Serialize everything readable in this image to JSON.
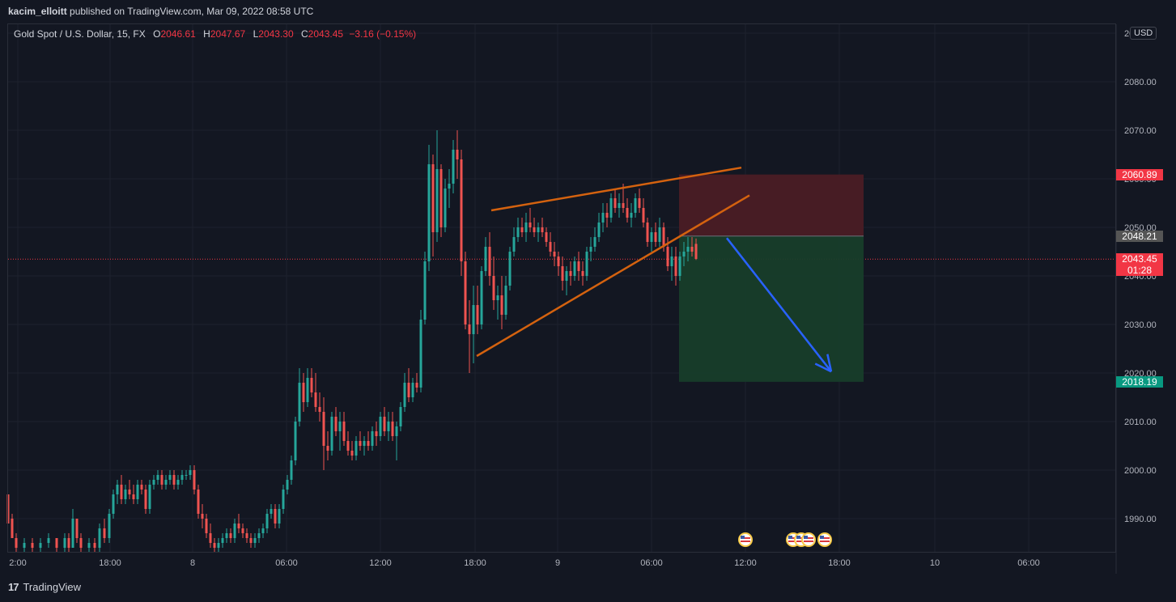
{
  "header": {
    "author": "kacim_elloitt",
    "text": " published on TradingView.com, Mar 09, 2022 08:58 UTC"
  },
  "legend": {
    "symbol": "Gold Spot / U.S. Dollar, 15, FX",
    "o_label": "O",
    "o_value": "2046.61",
    "h_label": "H",
    "h_value": "2047.67",
    "l_label": "L",
    "l_value": "2043.30",
    "c_label": "C",
    "c_value": "2043.45",
    "change": "−3.16 (−0.15%)"
  },
  "currency": "USD",
  "footer": {
    "brand": "TradingView",
    "logo": "17"
  },
  "colors": {
    "background": "#131722",
    "grid": "#1e222d",
    "up": "#26a69a",
    "down": "#ef5350",
    "wedge": "#d4620f",
    "stop_zone": "#4a1c25",
    "target_zone": "#173d2a",
    "arrow": "#2962ff"
  },
  "chart_data": {
    "type": "candlestick",
    "symbol": "Gold Spot / U.S. Dollar",
    "timeframe": "15",
    "ylim": [
      1983,
      2089
    ],
    "y_ticks": [
      1990,
      2000,
      2010,
      2020,
      2030,
      2040,
      2050,
      2060,
      2070,
      2080,
      2090
    ],
    "y_tick_labels": [
      "1990.00",
      "2000.00",
      "2010.00",
      "2020.00",
      "2030.00",
      "2040.00",
      "2050.00",
      "2060.00",
      "2070.00",
      "2080.00",
      "2090.00"
    ],
    "x_tick_labels": [
      "2:00",
      "18:00",
      "8",
      "06:00",
      "12:00",
      "18:00",
      "9",
      "06:00",
      "12:00",
      "18:00",
      "10",
      "06:00"
    ],
    "price_tags": [
      {
        "label": "2060.89",
        "value": 2060.89,
        "color": "#f23645"
      },
      {
        "label": "2048.21",
        "value": 2048.21,
        "color": "#555555"
      },
      {
        "label": "2043.45",
        "sublabel": "01:28",
        "value": 2043.45,
        "color": "#f23645"
      },
      {
        "label": "2018.19",
        "value": 2018.19,
        "color": "#089981"
      }
    ],
    "last_price": 2043.45,
    "position": {
      "entry": 2048.21,
      "stop": 2060.89,
      "target": 2018.19
    },
    "wedge": {
      "upper": [
        [
          607,
          2053.5
        ],
        [
          916,
          2062.3
        ]
      ],
      "lower": [
        [
          589,
          2023.5
        ],
        [
          926,
          2056.6
        ]
      ]
    },
    "arrow": [
      [
        898,
        2047.8
      ],
      [
        1027,
        2020.3
      ]
    ],
    "events": [
      921,
      980,
      990,
      999,
      1019
    ],
    "candles": [
      [
        10,
        1995,
        1995,
        1990,
        1989
      ],
      [
        15,
        1990,
        1991,
        1986,
        1986
      ],
      [
        20,
        1986,
        1987,
        1983,
        1984
      ],
      [
        30,
        1984,
        1986,
        1983,
        1985
      ],
      [
        40,
        1985,
        1986,
        1983,
        1984
      ],
      [
        50,
        1984,
        1986,
        1983,
        1985
      ],
      [
        60,
        1985,
        1987,
        1984,
        1986
      ],
      [
        70,
        1986,
        1986,
        1983,
        1984
      ],
      [
        80,
        1984,
        1987,
        1983,
        1986
      ],
      [
        85,
        1986,
        1987,
        1983,
        1984
      ],
      [
        90,
        1984,
        1992,
        1984,
        1990
      ],
      [
        95,
        1990,
        1990,
        1985,
        1986
      ],
      [
        100,
        1986,
        1987,
        1983,
        1984
      ],
      [
        110,
        1984,
        1986,
        1983,
        1985
      ],
      [
        117,
        1985,
        1986,
        1983,
        1984
      ],
      [
        123,
        1984,
        1989,
        1983,
        1988
      ],
      [
        129,
        1988,
        1990,
        1985,
        1986
      ],
      [
        135,
        1986,
        1992,
        1985,
        1991
      ],
      [
        140,
        1991,
        1996,
        1990,
        1995
      ],
      [
        145,
        1995,
        1998,
        1993,
        1997
      ],
      [
        150,
        1997,
        1999,
        1993,
        1994
      ],
      [
        155,
        1994,
        1997,
        1993,
        1996
      ],
      [
        160,
        1996,
        1998,
        1994,
        1995
      ],
      [
        165,
        1995,
        1997,
        1993,
        1994
      ],
      [
        170,
        1994,
        1998,
        1993,
        1997
      ],
      [
        175,
        1997,
        1998,
        1995,
        1996
      ],
      [
        180,
        1996,
        1997,
        1991,
        1992
      ],
      [
        185,
        1992,
        1998,
        1991,
        1997
      ],
      [
        190,
        1997,
        1999,
        1996,
        1998
      ],
      [
        195,
        1998,
        2000,
        1997,
        1999
      ],
      [
        200,
        1999,
        2000,
        1996,
        1997
      ],
      [
        205,
        1997,
        1999,
        1996,
        1998
      ],
      [
        210,
        1998,
        2000,
        1997,
        1999
      ],
      [
        215,
        1999,
        2000,
        1996,
        1997
      ],
      [
        220,
        1997,
        1999,
        1996,
        1998
      ],
      [
        225,
        1998,
        2000,
        1997,
        1999
      ],
      [
        230,
        1999,
        2000,
        1998,
        1999
      ],
      [
        235,
        1999,
        2001,
        1998,
        2000
      ],
      [
        240,
        2000,
        2001,
        1995,
        1996
      ],
      [
        245,
        1996,
        1997,
        1990,
        1991
      ],
      [
        250,
        1991,
        1993,
        1988,
        1990
      ],
      [
        255,
        1990,
        1991,
        1986,
        1987
      ],
      [
        260,
        1987,
        1989,
        1984,
        1985
      ],
      [
        265,
        1985,
        1986,
        1983,
        1984
      ],
      [
        270,
        1984,
        1986,
        1983,
        1985
      ],
      [
        275,
        1985,
        1987,
        1984,
        1986
      ],
      [
        280,
        1986,
        1988,
        1985,
        1987
      ],
      [
        285,
        1987,
        1988,
        1985,
        1986
      ],
      [
        290,
        1986,
        1990,
        1985,
        1989
      ],
      [
        295,
        1989,
        1991,
        1987,
        1988
      ],
      [
        300,
        1988,
        1989,
        1986,
        1987
      ],
      [
        305,
        1987,
        1988,
        1985,
        1986
      ],
      [
        310,
        1986,
        1987,
        1984,
        1985
      ],
      [
        315,
        1985,
        1987,
        1984,
        1986
      ],
      [
        320,
        1986,
        1988,
        1985,
        1987
      ],
      [
        325,
        1987,
        1989,
        1986,
        1988
      ],
      [
        330,
        1988,
        1992,
        1987,
        1991
      ],
      [
        335,
        1991,
        1993,
        1990,
        1992
      ],
      [
        340,
        1992,
        1993,
        1988,
        1989
      ],
      [
        345,
        1989,
        1993,
        1988,
        1992
      ],
      [
        350,
        1992,
        1997,
        1991,
        1996
      ],
      [
        355,
        1996,
        1999,
        1995,
        1998
      ],
      [
        360,
        1998,
        2003,
        1997,
        2002
      ],
      [
        365,
        2002,
        2011,
        2001,
        2010
      ],
      [
        370,
        2010,
        2021,
        2009,
        2018
      ],
      [
        375,
        2018,
        2020,
        2012,
        2014
      ],
      [
        380,
        2014,
        2021,
        2013,
        2019
      ],
      [
        385,
        2019,
        2021,
        2015,
        2016
      ],
      [
        390,
        2016,
        2020,
        2012,
        2013
      ],
      [
        395,
        2013,
        2016,
        2010,
        2012
      ],
      [
        400,
        2012,
        2015,
        2000,
        2005
      ],
      [
        405,
        2005,
        2008,
        2002,
        2004
      ],
      [
        410,
        2004,
        2012,
        2003,
        2011
      ],
      [
        415,
        2011,
        2013,
        2007,
        2008
      ],
      [
        420,
        2008,
        2012,
        2004,
        2010
      ],
      [
        425,
        2010,
        2012,
        2005,
        2006
      ],
      [
        430,
        2006,
        2008,
        2003,
        2004
      ],
      [
        435,
        2004,
        2006,
        2002,
        2003
      ],
      [
        440,
        2003,
        2007,
        2002,
        2006
      ],
      [
        445,
        2006,
        2008,
        2004,
        2005
      ],
      [
        450,
        2005,
        2007,
        2003,
        2006
      ],
      [
        455,
        2006,
        2008,
        2004,
        2005
      ],
      [
        460,
        2005,
        2009,
        2004,
        2008
      ],
      [
        465,
        2008,
        2010,
        2005,
        2007
      ],
      [
        470,
        2007,
        2012,
        2006,
        2011
      ],
      [
        475,
        2011,
        2013,
        2007,
        2008
      ],
      [
        480,
        2008,
        2012,
        2006,
        2010
      ],
      [
        485,
        2010,
        2012,
        2006,
        2007
      ],
      [
        490,
        2007,
        2010,
        2002,
        2009
      ],
      [
        495,
        2009,
        2014,
        2008,
        2013
      ],
      [
        500,
        2013,
        2020,
        2012,
        2018
      ],
      [
        505,
        2018,
        2021,
        2014,
        2015
      ],
      [
        510,
        2015,
        2019,
        2014,
        2018
      ],
      [
        515,
        2018,
        2020,
        2016,
        2017
      ],
      [
        520,
        2017,
        2033,
        2016,
        2031
      ],
      [
        525,
        2031,
        2045,
        2030,
        2043
      ],
      [
        530,
        2043,
        2067,
        2041,
        2063
      ],
      [
        535,
        2063,
        2065,
        2044,
        2049
      ],
      [
        540,
        2049,
        2070,
        2047,
        2062
      ],
      [
        545,
        2062,
        2063,
        2048,
        2050
      ],
      [
        550,
        2050,
        2060,
        2049,
        2058
      ],
      [
        555,
        2058,
        2062,
        2054,
        2059
      ],
      [
        560,
        2059,
        2068,
        2057,
        2066
      ],
      [
        565,
        2066,
        2070,
        2060,
        2064
      ],
      [
        570,
        2064,
        2066,
        2040,
        2043
      ],
      [
        575,
        2043,
        2045,
        2029,
        2030
      ],
      [
        580,
        2030,
        2035,
        2020,
        2028
      ],
      [
        585,
        2028,
        2038,
        2022,
        2034
      ],
      [
        590,
        2034,
        2038,
        2028,
        2030
      ],
      [
        595,
        2030,
        2042,
        2029,
        2041
      ],
      [
        600,
        2041,
        2048,
        2040,
        2046
      ],
      [
        605,
        2046,
        2049,
        2038,
        2040
      ],
      [
        610,
        2040,
        2044,
        2033,
        2035
      ],
      [
        615,
        2035,
        2038,
        2031,
        2036
      ],
      [
        620,
        2036,
        2040,
        2029,
        2032
      ],
      [
        625,
        2032,
        2040,
        2031,
        2038
      ],
      [
        630,
        2038,
        2046,
        2037,
        2045
      ],
      [
        635,
        2045,
        2050,
        2044,
        2048
      ],
      [
        640,
        2048,
        2052,
        2047,
        2050
      ],
      [
        645,
        2050,
        2052,
        2048,
        2049
      ],
      [
        650,
        2049,
        2053,
        2047,
        2051
      ],
      [
        655,
        2051,
        2054,
        2049,
        2050
      ],
      [
        660,
        2050,
        2052,
        2048,
        2049
      ],
      [
        665,
        2049,
        2051,
        2047,
        2050
      ],
      [
        670,
        2050,
        2052,
        2048,
        2049
      ],
      [
        675,
        2049,
        2050,
        2046,
        2047
      ],
      [
        680,
        2047,
        2049,
        2044,
        2045
      ],
      [
        685,
        2045,
        2047,
        2042,
        2044
      ],
      [
        690,
        2044,
        2045,
        2040,
        2042
      ],
      [
        695,
        2042,
        2044,
        2037,
        2039
      ],
      [
        700,
        2039,
        2042,
        2036,
        2041
      ],
      [
        705,
        2041,
        2043,
        2038,
        2040
      ],
      [
        710,
        2040,
        2044,
        2039,
        2043
      ],
      [
        715,
        2043,
        2045,
        2039,
        2041
      ],
      [
        720,
        2041,
        2043,
        2038,
        2040
      ],
      [
        725,
        2040,
        2046,
        2039,
        2045
      ],
      [
        730,
        2045,
        2048,
        2043,
        2046
      ],
      [
        735,
        2046,
        2050,
        2045,
        2048
      ],
      [
        740,
        2048,
        2053,
        2047,
        2051
      ],
      [
        745,
        2051,
        2055,
        2049,
        2053
      ],
      [
        750,
        2053,
        2055,
        2050,
        2052
      ],
      [
        755,
        2052,
        2057,
        2051,
        2056
      ],
      [
        760,
        2056,
        2058,
        2053,
        2054
      ],
      [
        765,
        2054,
        2057,
        2052,
        2055
      ],
      [
        770,
        2055,
        2059,
        2053,
        2054
      ],
      [
        775,
        2054,
        2056,
        2051,
        2052
      ],
      [
        780,
        2052,
        2055,
        2050,
        2053
      ],
      [
        785,
        2053,
        2057,
        2052,
        2056
      ],
      [
        790,
        2056,
        2058,
        2053,
        2054
      ],
      [
        795,
        2054,
        2056,
        2050,
        2051
      ],
      [
        800,
        2051,
        2052,
        2046,
        2047
      ],
      [
        805,
        2047,
        2050,
        2045,
        2049
      ],
      [
        810,
        2049,
        2051,
        2046,
        2047
      ],
      [
        815,
        2047,
        2052,
        2046,
        2050
      ],
      [
        820,
        2050,
        2051,
        2045,
        2046
      ],
      [
        825,
        2046,
        2048,
        2041,
        2042
      ],
      [
        830,
        2042,
        2046,
        2039,
        2044
      ],
      [
        835,
        2044,
        2046,
        2038,
        2040
      ],
      [
        840,
        2040,
        2045,
        2039,
        2044
      ],
      [
        845,
        2044,
        2047,
        2042,
        2045
      ],
      [
        850,
        2045,
        2048,
        2043,
        2046
      ],
      [
        855,
        2046,
        2048,
        2044,
        2045
      ],
      [
        860,
        2046.6,
        2047.7,
        2043.3,
        2043.5
      ]
    ]
  }
}
